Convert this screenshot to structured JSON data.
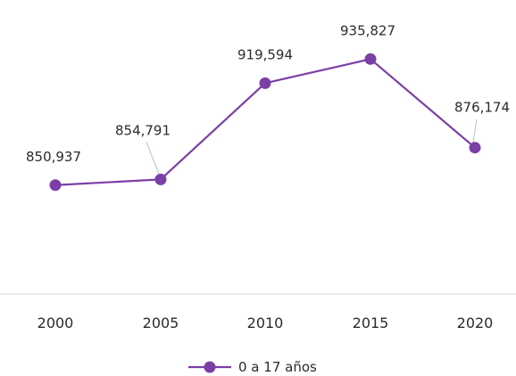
{
  "chart_data": {
    "type": "line",
    "x": [
      "2000",
      "2005",
      "2010",
      "2015",
      "2020"
    ],
    "series": [
      {
        "name": "0 a 17 años",
        "values": [
          850937,
          854791,
          919594,
          935827,
          876174
        ],
        "labels": [
          "850,937",
          "854,791",
          "919,594",
          "935,827",
          "876,174"
        ]
      }
    ],
    "xlabel": "",
    "ylabel": "",
    "ylim": [
      780000,
      960000
    ],
    "grid": false,
    "legend": "bottom-center"
  },
  "colors": {
    "series": "#7b3fa6",
    "axis": "#e3e3e3",
    "leader": "#b9bfd0",
    "text": "#2b2b2b"
  }
}
